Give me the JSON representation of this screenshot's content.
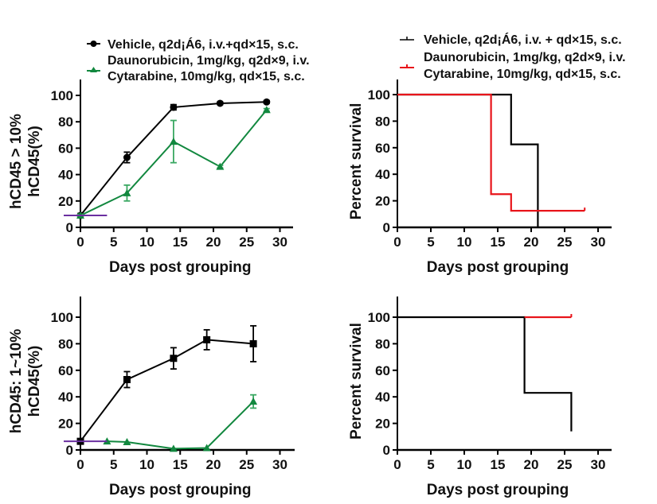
{
  "colors": {
    "vehicle": "#000000",
    "treated_line": "#12883f",
    "treated_survival": "#e8141a",
    "baseline": "#6a2fa0"
  },
  "legends": {
    "left": [
      {
        "label": "Vehicle, q2d¡Á6, i.v.+qd×15, s.c.",
        "marker": "circle",
        "color": "#000000"
      },
      {
        "label": "Daunorubicin, 1mg/kg, q2d×9, i.v.",
        "label2": "Cytarabine, 10mg/kg, qd×15, s.c.",
        "marker": "triangle",
        "color": "#12883f"
      }
    ],
    "right": [
      {
        "label": "Vehicle, q2d¡Á6, i.v. + qd×15, s.c.",
        "marker": "step",
        "color": "#000000"
      },
      {
        "label": "Daunorubicin, 1mg/kg, q2d×9, i.v.",
        "label2": "Cytarabine, 10mg/kg, qd×15, s.c.",
        "marker": "step",
        "color": "#e8141a"
      }
    ]
  },
  "chart_data": [
    {
      "id": "top-left",
      "type": "line",
      "title": "",
      "xlabel": "Days post grouping",
      "ylabel": "hCD45 > 10%",
      "ylabel2": "hCD45(%)",
      "xlim": [
        0,
        32
      ],
      "ylim": [
        0,
        110
      ],
      "xticks": [
        0,
        5,
        10,
        15,
        20,
        25,
        30
      ],
      "yticks": [
        0,
        20,
        40,
        60,
        80,
        100
      ],
      "baseline": {
        "y": 9,
        "x": [
          0,
          4
        ],
        "color": "#6a2fa0"
      },
      "series": [
        {
          "name": "Vehicle",
          "marker": "circle",
          "color": "#000000",
          "x": [
            0,
            7,
            14,
            21,
            28
          ],
          "y": [
            9,
            53,
            91,
            94,
            95
          ],
          "err": [
            1.5,
            4,
            2,
            1,
            1
          ]
        },
        {
          "name": "Daunorubicin + Cytarabine",
          "marker": "triangle",
          "color": "#12883f",
          "x": [
            0,
            7,
            14,
            21,
            28
          ],
          "y": [
            9,
            26,
            65,
            46,
            89
          ],
          "err": [
            1,
            6,
            16,
            1,
            1
          ]
        }
      ]
    },
    {
      "id": "top-right",
      "type": "line",
      "subtype": "survival",
      "title": "",
      "xlabel": "Days post grouping",
      "ylabel": "Percent survival",
      "xlim": [
        0,
        32
      ],
      "ylim": [
        0,
        110
      ],
      "xticks": [
        0,
        5,
        10,
        15,
        20,
        25,
        30
      ],
      "yticks": [
        0,
        20,
        40,
        60,
        80,
        100
      ],
      "series": [
        {
          "name": "Vehicle",
          "color": "#000000",
          "steps": [
            [
              0,
              100
            ],
            [
              17,
              100
            ],
            [
              17,
              62.5
            ],
            [
              21,
              62.5
            ],
            [
              21,
              0
            ]
          ]
        },
        {
          "name": "Daunorubicin + Cytarabine",
          "color": "#e8141a",
          "steps": [
            [
              0,
              100
            ],
            [
              14,
              100
            ],
            [
              14,
              25
            ],
            [
              17,
              25
            ],
            [
              17,
              12.5
            ],
            [
              28,
              12.5
            ]
          ],
          "censor": [
            [
              28,
              12.5
            ]
          ]
        }
      ]
    },
    {
      "id": "bottom-left",
      "type": "line",
      "title": "",
      "xlabel": "Days post grouping",
      "ylabel": "hCD45: 1~10%",
      "ylabel2": "hCD45(%)",
      "xlim": [
        0,
        32
      ],
      "ylim": [
        0,
        115
      ],
      "xticks": [
        0,
        5,
        10,
        15,
        20,
        25,
        30
      ],
      "yticks": [
        0,
        20,
        40,
        60,
        80,
        100
      ],
      "baseline": {
        "y": 6.5,
        "x": [
          0,
          4
        ],
        "color": "#6a2fa0"
      },
      "series": [
        {
          "name": "Vehicle",
          "marker": "square",
          "color": "#000000",
          "x": [
            0,
            7,
            14,
            19,
            26
          ],
          "y": [
            6.5,
            53,
            69,
            83,
            80
          ],
          "err": [
            1,
            6,
            8,
            7.5,
            13.5
          ]
        },
        {
          "name": "Daunorubicin + Cytarabine",
          "marker": "triangle",
          "color": "#12883f",
          "x": [
            4,
            7,
            14,
            19,
            26
          ],
          "y": [
            6.5,
            6,
            1,
            1.5,
            36.5
          ],
          "err": [
            0,
            0,
            0,
            0,
            5
          ]
        }
      ]
    },
    {
      "id": "bottom-right",
      "type": "line",
      "subtype": "survival",
      "title": "",
      "xlabel": "Days post grouping",
      "ylabel": "Percent survival",
      "xlim": [
        0,
        32
      ],
      "ylim": [
        0,
        115
      ],
      "xticks": [
        0,
        5,
        10,
        15,
        20,
        25,
        30
      ],
      "yticks": [
        0,
        20,
        40,
        60,
        80,
        100
      ],
      "series": [
        {
          "name": "Vehicle",
          "color": "#000000",
          "steps": [
            [
              0,
              100
            ],
            [
              19,
              100
            ],
            [
              19,
              43
            ],
            [
              26,
              43
            ],
            [
              26,
              14
            ]
          ]
        },
        {
          "name": "Daunorubicin + Cytarabine",
          "color": "#e8141a",
          "steps": [
            [
              19,
              100
            ],
            [
              26,
              100
            ]
          ],
          "censor": [
            [
              26,
              100
            ]
          ]
        }
      ]
    }
  ]
}
